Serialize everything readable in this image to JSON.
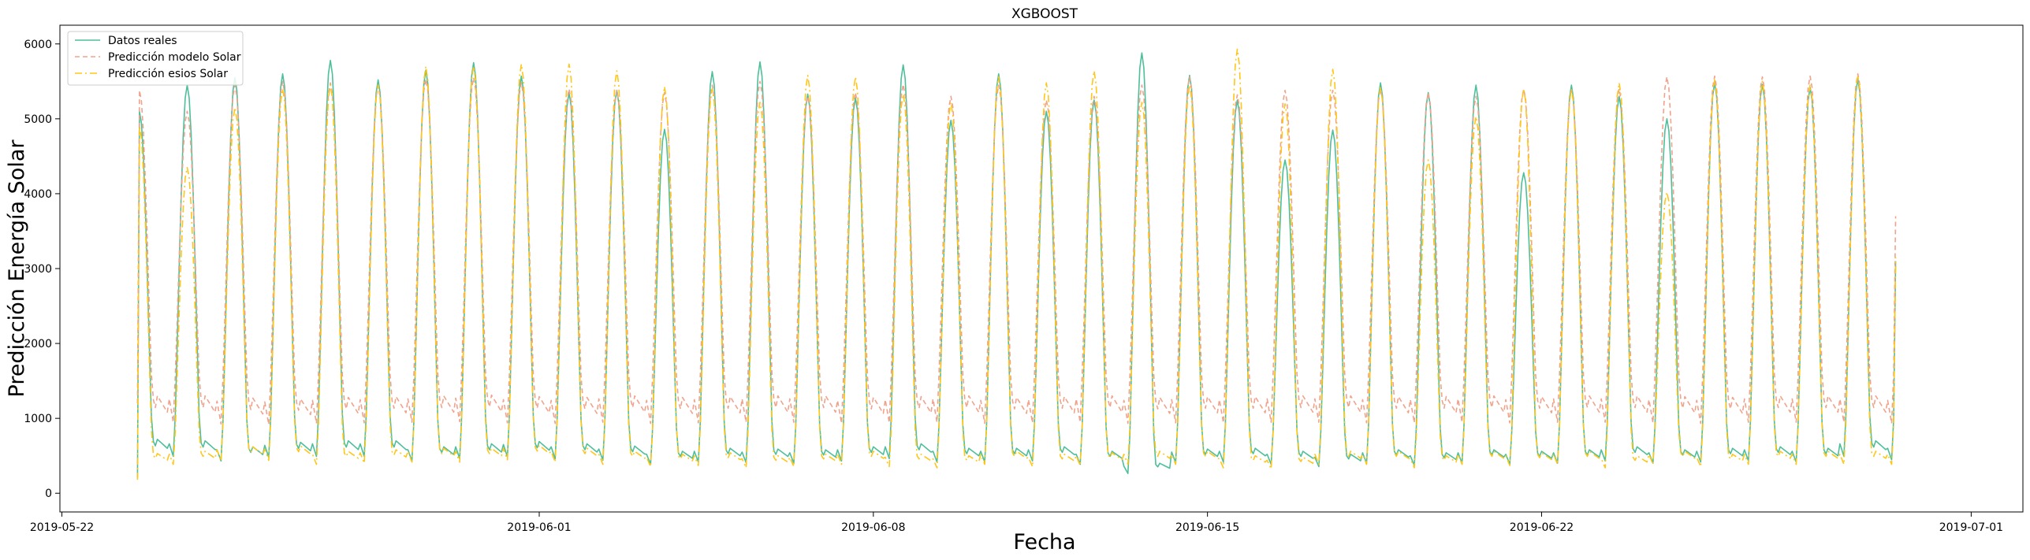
{
  "chart_data": {
    "type": "line",
    "title": "XGBOOST",
    "xlabel": "Fecha",
    "ylabel": "Predicción Energía Solar",
    "x_range": [
      "2019-05-21T23:00",
      "2019-07-02T02:00"
    ],
    "ylim": [
      -250,
      6250
    ],
    "x_ticks": [
      "2019-05-22",
      "2019-06-01",
      "2019-06-08",
      "2019-06-15",
      "2019-06-22",
      "2019-07-01"
    ],
    "y_ticks": [
      0,
      1000,
      2000,
      3000,
      4000,
      5000,
      6000
    ],
    "grid": false,
    "legend_position": "upper-left",
    "start_date": "2019-05-23",
    "days": 38,
    "series": [
      {
        "name": "Datos reales",
        "color": "#4dbf9a",
        "dash": "solid",
        "first_value": 210,
        "last_value": 3100,
        "daily_peak": [
          5100,
          5450,
          5550,
          5600,
          5780,
          5520,
          5650,
          5750,
          5570,
          5350,
          5380,
          4860,
          5630,
          5760,
          5330,
          5280,
          5720,
          4980,
          5600,
          5100,
          5250,
          5880,
          5580,
          5250,
          4450,
          4850,
          5480,
          5350,
          5450,
          4280,
          5450,
          5300,
          5000,
          5480,
          5460,
          5420,
          5530,
          5450
        ],
        "daily_night": [
          720,
          700,
          620,
          680,
          700,
          700,
          620,
          660,
          690,
          660,
          630,
          560,
          600,
          590,
          580,
          620,
          660,
          600,
          600,
          620,
          560,
          400,
          590,
          600,
          560,
          520,
          580,
          540,
          580,
          560,
          580,
          620,
          580,
          600,
          620,
          600,
          700,
          640
        ]
      },
      {
        "name": "Predicción modelo Solar",
        "color": "#f0a38c",
        "dash": "dashed",
        "first_value": 1200,
        "last_value": 3700,
        "daily_peak": [
          5380,
          5100,
          5450,
          5500,
          5480,
          5450,
          5530,
          5550,
          5480,
          5400,
          5380,
          5350,
          5450,
          5500,
          5300,
          5350,
          5460,
          5300,
          5450,
          5250,
          5300,
          5450,
          5560,
          5320,
          5380,
          5380,
          5400,
          5350,
          5300,
          5400,
          5380,
          5400,
          5560,
          5570,
          5560,
          5570,
          5600,
          5480
        ],
        "daily_night": [
          1300,
          1300,
          1270,
          1260,
          1280,
          1290,
          1300,
          1310,
          1290,
          1280,
          1300,
          1280,
          1290,
          1300,
          1300,
          1280,
          1290,
          1300,
          1280,
          1290,
          1300,
          1280,
          1290,
          1290,
          1300,
          1300,
          1290,
          1290,
          1300,
          1290,
          1300,
          1300,
          1290,
          1280,
          1300,
          1300,
          1300,
          1280
        ]
      },
      {
        "name": "Predicción esios Solar",
        "color": "#ffc617",
        "dash": "dashdot",
        "first_value": 180,
        "last_value": 3150,
        "daily_peak": [
          4900,
          4350,
          5150,
          5400,
          5450,
          5450,
          5700,
          5700,
          5730,
          5730,
          5640,
          5430,
          5400,
          5220,
          5580,
          5560,
          5330,
          5220,
          5560,
          5480,
          5640,
          5220,
          5450,
          5930,
          5200,
          5660,
          5420,
          4450,
          5030,
          5400,
          5400,
          5480,
          4020,
          5520,
          5500,
          5450,
          5580,
          5420
        ],
        "daily_night": [
          530,
          560,
          620,
          630,
          560,
          580,
          600,
          600,
          640,
          600,
          560,
          520,
          540,
          500,
          520,
          560,
          520,
          500,
          560,
          520,
          540,
          560,
          560,
          500,
          480,
          560,
          560,
          500,
          560,
          540,
          560,
          500,
          560,
          520,
          560,
          560,
          560,
          560
        ]
      }
    ]
  }
}
